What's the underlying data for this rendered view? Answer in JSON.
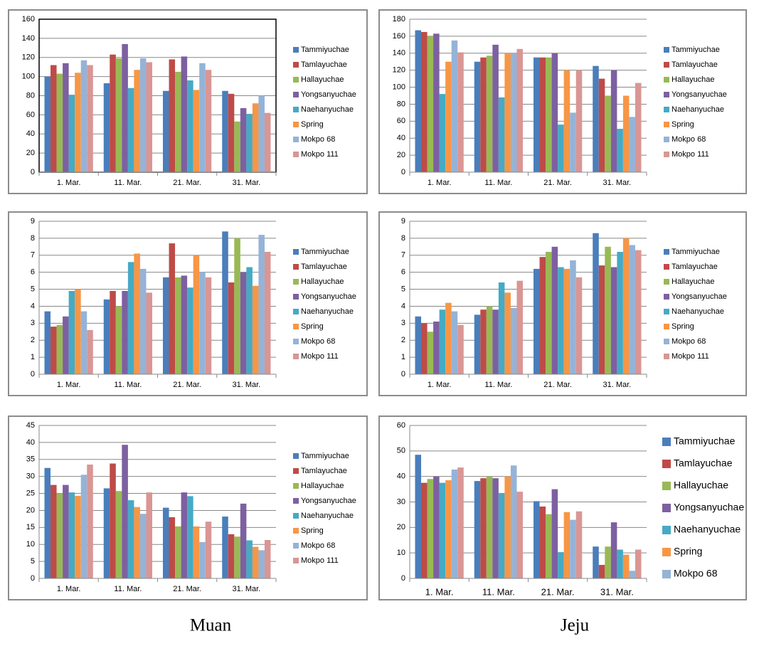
{
  "chart_data": [
    {
      "type": "bar",
      "categories": [
        "1. Mar.",
        "11. Mar.",
        "21. Mar.",
        "31. Mar."
      ],
      "ylim": [
        0,
        160
      ],
      "yticks": [
        0,
        20,
        40,
        60,
        80,
        100,
        120,
        140,
        160
      ],
      "grid": true,
      "legend": "right",
      "series": [
        {
          "name": "Tammiyuchae",
          "color": "#4a7ebb",
          "values": [
            100,
            93,
            85,
            85
          ]
        },
        {
          "name": "Tamlayuchae",
          "color": "#be4b48",
          "values": [
            112,
            123,
            118,
            82
          ]
        },
        {
          "name": "Hallayuchae",
          "color": "#98b954",
          "values": [
            103,
            119,
            105,
            53
          ]
        },
        {
          "name": "Yongsanyuchae",
          "color": "#7d60a0",
          "values": [
            114,
            134,
            121,
            67
          ]
        },
        {
          "name": "Naehanyuchae",
          "color": "#46aac5",
          "values": [
            81,
            88,
            96,
            61
          ]
        },
        {
          "name": "Spring",
          "color": "#f79646",
          "values": [
            104,
            107,
            86,
            72
          ]
        },
        {
          "name": "Mokpo 68",
          "color": "#95b3d7",
          "values": [
            117,
            119,
            114,
            80
          ]
        },
        {
          "name": "Mokpo 111",
          "color": "#d99694",
          "values": [
            112,
            115,
            107,
            62
          ]
        }
      ]
    },
    {
      "type": "bar",
      "categories": [
        "1. Mar.",
        "11. Mar.",
        "21. Mar.",
        "31. Mar."
      ],
      "ylim": [
        0,
        180
      ],
      "yticks": [
        0,
        20,
        40,
        60,
        80,
        100,
        120,
        140,
        160,
        180
      ],
      "grid": true,
      "legend": "right",
      "series": [
        {
          "name": "Tammiyuchae",
          "color": "#4a7ebb",
          "values": [
            167,
            130,
            135,
            125
          ]
        },
        {
          "name": "Tamlayuchae",
          "color": "#be4b48",
          "values": [
            165,
            135,
            135,
            110
          ]
        },
        {
          "name": "Hallayuchae",
          "color": "#98b954",
          "values": [
            160,
            137,
            135,
            90
          ]
        },
        {
          "name": "Yongsanyuchae",
          "color": "#7d60a0",
          "values": [
            163,
            150,
            140,
            120
          ]
        },
        {
          "name": "Naehanyuchae",
          "color": "#46aac5",
          "values": [
            92,
            88,
            56,
            51
          ]
        },
        {
          "name": "Spring",
          "color": "#f79646",
          "values": [
            130,
            140,
            120,
            90
          ]
        },
        {
          "name": "Mokpo 68",
          "color": "#95b3d7",
          "values": [
            155,
            140,
            70,
            65
          ]
        },
        {
          "name": "Mokpo 111",
          "color": "#d99694",
          "values": [
            141,
            145,
            120,
            105
          ]
        }
      ]
    },
    {
      "type": "bar",
      "categories": [
        "1. Mar.",
        "11. Mar.",
        "21. Mar.",
        "31. Mar."
      ],
      "ylim": [
        0,
        9
      ],
      "yticks": [
        0,
        1,
        2,
        3,
        4,
        5,
        6,
        7,
        8,
        9
      ],
      "grid": true,
      "legend": "right",
      "series": [
        {
          "name": "Tammiyuchae",
          "color": "#4a7ebb",
          "values": [
            3.7,
            4.4,
            5.7,
            8.4
          ]
        },
        {
          "name": "Tamlayuchae",
          "color": "#be4b48",
          "values": [
            2.8,
            4.9,
            7.7,
            5.4
          ]
        },
        {
          "name": "Hallayuchae",
          "color": "#98b954",
          "values": [
            2.9,
            4.0,
            5.7,
            8.0
          ]
        },
        {
          "name": "Yongsanyuchae",
          "color": "#7d60a0",
          "values": [
            3.4,
            4.9,
            5.8,
            6.0
          ]
        },
        {
          "name": "Naehanyuchae",
          "color": "#46aac5",
          "values": [
            4.9,
            6.6,
            5.1,
            6.3
          ]
        },
        {
          "name": "Spring",
          "color": "#f79646",
          "values": [
            5.0,
            7.1,
            7.0,
            5.2
          ]
        },
        {
          "name": "Mokpo 68",
          "color": "#95b3d7",
          "values": [
            3.7,
            6.2,
            6.0,
            8.2
          ]
        },
        {
          "name": "Mokpo 111",
          "color": "#d99694",
          "values": [
            2.6,
            4.8,
            5.7,
            7.2
          ]
        }
      ]
    },
    {
      "type": "bar",
      "categories": [
        "1. Mar.",
        "11. Mar.",
        "21. Mar.",
        "31. Mar."
      ],
      "ylim": [
        0,
        9
      ],
      "yticks": [
        0,
        1,
        2,
        3,
        4,
        5,
        6,
        7,
        8,
        9
      ],
      "grid": true,
      "legend": "right",
      "series": [
        {
          "name": "Tammiyuchae",
          "color": "#4a7ebb",
          "values": [
            3.4,
            3.5,
            6.2,
            8.3
          ]
        },
        {
          "name": "Tamlayuchae",
          "color": "#be4b48",
          "values": [
            3.0,
            3.8,
            6.9,
            6.4
          ]
        },
        {
          "name": "Hallayuchae",
          "color": "#98b954",
          "values": [
            2.5,
            4.0,
            7.2,
            7.5
          ]
        },
        {
          "name": "Yongsanyuchae",
          "color": "#7d60a0",
          "values": [
            3.1,
            3.8,
            7.5,
            6.3
          ]
        },
        {
          "name": "Naehanyuchae",
          "color": "#46aac5",
          "values": [
            3.8,
            5.4,
            6.3,
            7.2
          ]
        },
        {
          "name": "Spring",
          "color": "#f79646",
          "values": [
            4.2,
            4.8,
            6.2,
            8.0
          ]
        },
        {
          "name": "Mokpo 68",
          "color": "#95b3d7",
          "values": [
            3.7,
            3.9,
            6.7,
            7.6
          ]
        },
        {
          "name": "Mokpo 111",
          "color": "#d99694",
          "values": [
            2.9,
            5.5,
            5.7,
            7.3
          ]
        }
      ]
    },
    {
      "type": "bar",
      "categories": [
        "1. Mar.",
        "11. Mar.",
        "21. Mar.",
        "31. Mar."
      ],
      "ylim": [
        0,
        45
      ],
      "yticks": [
        0,
        5,
        10,
        15,
        20,
        25,
        30,
        35,
        40,
        45
      ],
      "grid": true,
      "legend": "right",
      "series": [
        {
          "name": "Tammiyuchae",
          "color": "#4a7ebb",
          "values": [
            32.5,
            26.5,
            20.8,
            18.2
          ]
        },
        {
          "name": "Tamlayuchae",
          "color": "#be4b48",
          "values": [
            27.5,
            33.8,
            18,
            13
          ]
        },
        {
          "name": "Hallayuchae",
          "color": "#98b954",
          "values": [
            25,
            25.7,
            15.3,
            12.3
          ]
        },
        {
          "name": "Yongsanyuchae",
          "color": "#7d60a0",
          "values": [
            27.5,
            39.3,
            25.3,
            22
          ]
        },
        {
          "name": "Naehanyuchae",
          "color": "#46aac5",
          "values": [
            25.3,
            23,
            24.2,
            11.2
          ]
        },
        {
          "name": "Spring",
          "color": "#f79646",
          "values": [
            24.3,
            21,
            15.3,
            9.3
          ]
        },
        {
          "name": "Mokpo 68",
          "color": "#95b3d7",
          "values": [
            30.5,
            19,
            10.7,
            8.3
          ]
        },
        {
          "name": "Mokpo 111",
          "color": "#d99694",
          "values": [
            33.5,
            25.3,
            16.7,
            11.3
          ]
        }
      ]
    },
    {
      "type": "bar",
      "categories": [
        "1. Mar.",
        "11. Mar.",
        "21. Mar.",
        "31. Mar."
      ],
      "ylim": [
        0,
        60
      ],
      "yticks": [
        0,
        10,
        20,
        30,
        40,
        50,
        60
      ],
      "grid": true,
      "legend": "right",
      "series": [
        {
          "name": "Tammiyuchae",
          "color": "#4a7ebb",
          "values": [
            48.5,
            38.2,
            30.3,
            12.5
          ]
        },
        {
          "name": "Tamlayuchae",
          "color": "#be4b48",
          "values": [
            37.5,
            39.3,
            28.2,
            5.3
          ]
        },
        {
          "name": "Hallayuchae",
          "color": "#98b954",
          "values": [
            39,
            40,
            25.2,
            12.5
          ]
        },
        {
          "name": "Yongsanyuchae",
          "color": "#7d60a0",
          "values": [
            40,
            39.3,
            35,
            22
          ]
        },
        {
          "name": "Naehanyuchae",
          "color": "#46aac5",
          "values": [
            37.5,
            33.5,
            10.3,
            11.3
          ]
        },
        {
          "name": "Spring",
          "color": "#f79646",
          "values": [
            38.5,
            40,
            26,
            9.3
          ]
        },
        {
          "name": "Mokpo 68",
          "color": "#95b3d7",
          "values": [
            42.7,
            44.3,
            23,
            3
          ]
        },
        {
          "color": "#d99694",
          "values": [
            43.5,
            34,
            26.3,
            11.3
          ]
        }
      ]
    }
  ],
  "captions": [
    "Muan",
    "Jeju"
  ]
}
